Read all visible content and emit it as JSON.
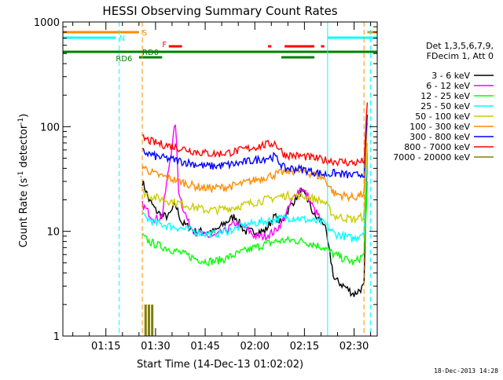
{
  "chart_data": {
    "type": "line",
    "title": "HESSI Observing Summary Count Rates",
    "xlabel": "Start Time (14-Dec-13 01:02:02)",
    "ylabel": "Count Rate (s⁻¹ detector⁻¹)",
    "y_scale": "log",
    "ylim": [
      1,
      1000
    ],
    "xlim_minutes_axis": [
      "01:02",
      "02:37"
    ],
    "x_ticks": [
      "01:15",
      "01:30",
      "01:45",
      "02:00",
      "02:15",
      "02:30"
    ],
    "y_ticks": [
      "1",
      "10",
      "100",
      "1000"
    ],
    "legend_header": [
      "Det 1,3,5,6,7,9,",
      "FDecim 1, Att 0"
    ],
    "legend_placement": "right",
    "grid": false,
    "series": [
      {
        "name": "3 - 6 keV",
        "color": "#000000",
        "x": [
          "01:26",
          "01:27",
          "01:28",
          "01:29",
          "01:30",
          "01:32",
          "01:34",
          "01:36",
          "01:38",
          "01:40",
          "01:42",
          "01:45",
          "01:48",
          "01:51",
          "01:54",
          "01:57",
          "02:00",
          "02:03",
          "02:06",
          "02:08",
          "02:10",
          "02:12",
          "02:14",
          "02:16",
          "02:18",
          "02:21",
          "02:24",
          "02:27",
          "02:30",
          "02:33",
          "02:34"
        ],
        "values": [
          30,
          25,
          20,
          18,
          16,
          14,
          14,
          18,
          12,
          11,
          10,
          10,
          10,
          12,
          14,
          10,
          10,
          10,
          14,
          12,
          16,
          20,
          24,
          20,
          14,
          12,
          3.5,
          3,
          2.5,
          3,
          60
        ]
      },
      {
        "name": "6 - 12 keV",
        "color": "#ff00ff",
        "x": [
          "01:26",
          "01:28",
          "01:30",
          "01:32",
          "01:34",
          "01:36",
          "01:37",
          "01:38",
          "01:40",
          "01:42",
          "01:45",
          "01:48",
          "01:51",
          "01:54",
          "01:57",
          "02:00",
          "02:03",
          "02:06",
          "02:08",
          "02:10",
          "02:12",
          "02:14",
          "02:16",
          "02:18",
          "02:20"
        ],
        "values": [
          18,
          15,
          13,
          14,
          40,
          110,
          25,
          18,
          12,
          10,
          9,
          9,
          10,
          12,
          11,
          9,
          9,
          10,
          12,
          16,
          22,
          26,
          22,
          16,
          13
        ]
      },
      {
        "name": "12 - 25 keV",
        "color": "#00ff00",
        "x": [
          "01:26",
          "01:28",
          "01:30",
          "01:33",
          "01:36",
          "01:39",
          "01:42",
          "01:45",
          "01:48",
          "01:51",
          "01:54",
          "01:57",
          "02:00",
          "02:03",
          "02:06",
          "02:09",
          "02:12",
          "02:15",
          "02:18",
          "02:21",
          "02:24",
          "02:27",
          "02:30",
          "02:33",
          "02:34"
        ],
        "values": [
          9,
          8,
          7.5,
          7,
          6.5,
          6,
          5.5,
          5.2,
          5.2,
          5.5,
          6,
          6.5,
          7,
          7.5,
          8,
          8.2,
          8.2,
          8,
          7.5,
          7,
          6,
          5.5,
          5,
          6,
          30
        ]
      },
      {
        "name": "25 - 50 keV",
        "color": "#00ffff",
        "x": [
          "01:26",
          "01:28",
          "01:30",
          "01:33",
          "01:36",
          "01:39",
          "01:42",
          "01:45",
          "01:48",
          "01:51",
          "01:54",
          "01:57",
          "02:00",
          "02:03",
          "02:06",
          "02:09",
          "02:12",
          "02:15",
          "02:18",
          "02:21",
          "02:24",
          "02:27",
          "02:30",
          "02:33",
          "02:34"
        ],
        "values": [
          14,
          13,
          12,
          11.5,
          11,
          10.5,
          10,
          9.5,
          9.5,
          10,
          10.5,
          11.5,
          12,
          12.5,
          13,
          13.5,
          13.5,
          13,
          12.5,
          12,
          9.5,
          9,
          8.5,
          10,
          60
        ]
      },
      {
        "name": "50 - 100 keV",
        "color": "#cccc00",
        "x": [
          "01:26",
          "01:28",
          "01:30",
          "01:33",
          "01:36",
          "01:39",
          "01:42",
          "01:45",
          "01:48",
          "01:51",
          "01:54",
          "01:57",
          "02:00",
          "02:03",
          "02:06",
          "02:09",
          "02:12",
          "02:15",
          "02:18",
          "02:21",
          "02:24",
          "02:27",
          "02:30",
          "02:33",
          "02:34"
        ],
        "values": [
          24,
          22,
          21,
          20,
          19,
          18,
          17,
          16,
          16,
          16.5,
          17,
          18,
          19,
          20,
          21,
          22,
          22,
          21.5,
          20.5,
          19,
          14,
          13.5,
          13,
          14,
          70
        ]
      },
      {
        "name": "100 - 300 keV",
        "color": "#ff8c00",
        "x": [
          "01:26",
          "01:28",
          "01:30",
          "01:33",
          "01:36",
          "01:39",
          "01:42",
          "01:45",
          "01:48",
          "01:51",
          "01:54",
          "01:57",
          "02:00",
          "02:03",
          "02:06",
          "02:09",
          "02:12",
          "02:15",
          "02:18",
          "02:21",
          "02:24",
          "02:27",
          "02:30",
          "02:33",
          "02:34"
        ],
        "values": [
          42,
          38,
          35,
          33,
          31,
          29,
          27,
          26,
          26,
          26.5,
          27.5,
          29,
          31,
          33,
          35,
          37,
          38,
          37,
          35,
          32,
          23,
          22,
          21,
          23,
          110
        ]
      },
      {
        "name": "300 - 800 keV",
        "color": "#0000ff",
        "x": [
          "01:26",
          "01:28",
          "01:30",
          "01:33",
          "01:36",
          "01:39",
          "01:42",
          "01:45",
          "01:48",
          "01:51",
          "01:54",
          "01:57",
          "02:00",
          "02:03",
          "02:06",
          "02:09",
          "02:12",
          "02:15",
          "02:18",
          "02:21",
          "02:24",
          "02:27",
          "02:30",
          "02:33",
          "02:34"
        ],
        "values": [
          58,
          55,
          52,
          50,
          48,
          46,
          44,
          42,
          42,
          43,
          44,
          46,
          48,
          50,
          52,
          40,
          40,
          39,
          37,
          35,
          36,
          35,
          34,
          36,
          130
        ]
      },
      {
        "name": "800 - 7000 keV",
        "color": "#ff0000",
        "x": [
          "01:26",
          "01:28",
          "01:30",
          "01:33",
          "01:36",
          "01:39",
          "01:42",
          "01:45",
          "01:48",
          "01:51",
          "01:54",
          "01:57",
          "02:00",
          "02:03",
          "02:06",
          "02:09",
          "02:12",
          "02:15",
          "02:18",
          "02:21",
          "02:24",
          "02:27",
          "02:30",
          "02:33",
          "02:34"
        ],
        "values": [
          78,
          74,
          70,
          67,
          64,
          61,
          58,
          56,
          55,
          56,
          58,
          61,
          64,
          67,
          70,
          54,
          53,
          52,
          50,
          48,
          47,
          46,
          45,
          47,
          170
        ]
      },
      {
        "name": "7000 - 20000 keV",
        "color": "#808000",
        "x": [
          "01:27",
          "01:28",
          "01:29"
        ],
        "values": [
          2,
          2,
          2
        ]
      }
    ],
    "annotations": [
      {
        "label": "S",
        "color": "#ff8c00"
      },
      {
        "label": "N",
        "color": "#00ffff"
      },
      {
        "label": "F",
        "color": "#ff0000"
      },
      {
        "label": "RD0",
        "color": "#008000"
      },
      {
        "label": "RD6",
        "color": "#008000"
      }
    ]
  },
  "footer_date": "18-Dec-2013 14:28"
}
